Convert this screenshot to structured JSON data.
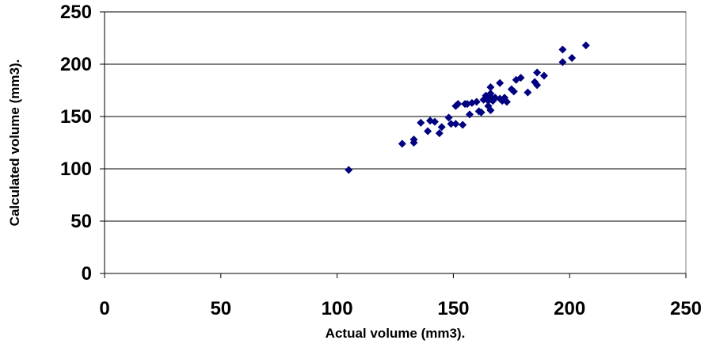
{
  "chart_data": {
    "type": "scatter",
    "xlabel": "Actual volume (mm3).",
    "ylabel": "Calculated volume (mm3).",
    "xlim": [
      0,
      250
    ],
    "ylim": [
      0,
      250
    ],
    "xticks": [
      0,
      50,
      100,
      150,
      200,
      250
    ],
    "yticks": [
      0,
      50,
      100,
      150,
      200,
      250
    ],
    "grid": "horizontal",
    "legend": "none",
    "marker": "diamond",
    "marker_color": "#000080",
    "series": [
      {
        "points": [
          [
            105,
            99
          ],
          [
            128,
            124
          ],
          [
            133,
            125
          ],
          [
            133,
            128
          ],
          [
            136,
            144
          ],
          [
            139,
            136
          ],
          [
            140,
            146
          ],
          [
            142,
            145
          ],
          [
            144,
            134
          ],
          [
            145,
            140
          ],
          [
            148,
            149
          ],
          [
            149,
            143
          ],
          [
            151,
            143
          ],
          [
            151,
            160
          ],
          [
            152,
            162
          ],
          [
            154,
            142
          ],
          [
            155,
            162
          ],
          [
            156,
            162
          ],
          [
            157,
            152
          ],
          [
            158,
            163
          ],
          [
            160,
            164
          ],
          [
            161,
            155
          ],
          [
            162,
            154
          ],
          [
            163,
            166
          ],
          [
            164,
            170
          ],
          [
            165,
            160
          ],
          [
            165,
            165
          ],
          [
            166,
            156
          ],
          [
            166,
            169
          ],
          [
            166,
            172
          ],
          [
            166,
            178
          ],
          [
            167,
            165
          ],
          [
            168,
            168
          ],
          [
            170,
            167
          ],
          [
            170,
            182
          ],
          [
            171,
            165
          ],
          [
            172,
            168
          ],
          [
            173,
            164
          ],
          [
            175,
            176
          ],
          [
            176,
            174
          ],
          [
            177,
            185
          ],
          [
            179,
            187
          ],
          [
            182,
            173
          ],
          [
            185,
            183
          ],
          [
            186,
            180
          ],
          [
            186,
            192
          ],
          [
            189,
            189
          ],
          [
            197,
            202
          ],
          [
            197,
            214
          ],
          [
            201,
            206
          ],
          [
            207,
            218
          ]
        ]
      }
    ]
  }
}
